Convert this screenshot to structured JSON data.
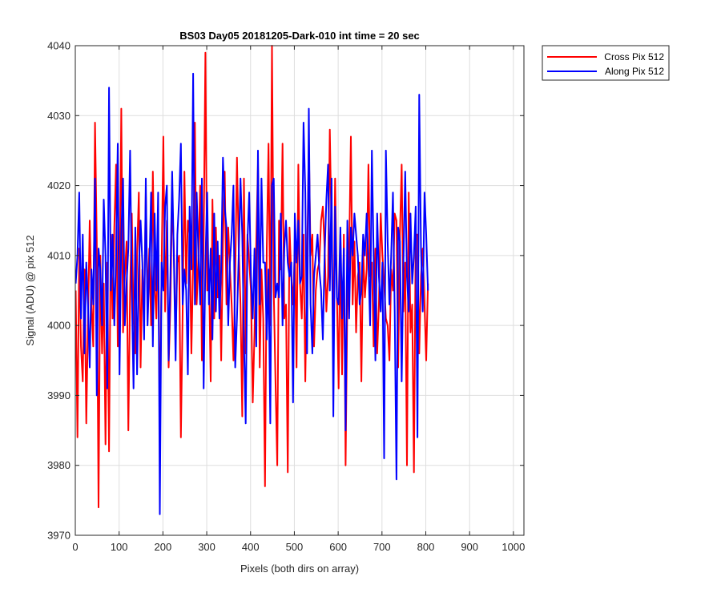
{
  "chart_data": {
    "type": "line",
    "title": "BS03 Day05 20181205-Dark-010 int time = 20 sec",
    "xlabel": "Pixels (both dirs on array)",
    "ylabel": "Signal (ADU) @ pix 512",
    "xlim": [
      0,
      1024
    ],
    "ylim": [
      3970,
      4040
    ],
    "xticks": [
      0,
      100,
      200,
      300,
      400,
      500,
      600,
      700,
      800,
      900,
      1000
    ],
    "yticks": [
      3970,
      3980,
      3990,
      4000,
      4010,
      4020,
      4030,
      4040
    ],
    "grid": true,
    "legend_placement": "outside-top-right",
    "x_start": 1,
    "x_step": 4,
    "series": [
      {
        "name": "Cross Pix 512",
        "color": "#ff0000",
        "values": [
          4005,
          3984,
          4011,
          3997,
          3992,
          4008,
          3986,
          4001,
          4015,
          4003,
          3997,
          4029,
          4012,
          3974,
          4010,
          3996,
          4006,
          3983,
          4009,
          3982,
          4013,
          4001,
          4014,
          4023,
          3997,
          4003,
          4031,
          3999,
          4007,
          4012,
          3985,
          4005,
          4016,
          4001,
          3996,
          4010,
          4019,
          3994,
          4008,
          4002,
          4019,
          4003,
          4011,
          4000,
          4022,
          4006,
          4001,
          4013,
          3985,
          4008,
          4027,
          4002,
          4015,
          3994,
          4003,
          4018,
          4011,
          3998,
          4009,
          4010,
          3984,
          4002,
          4022,
          4006,
          4015,
          4013,
          3996,
          4009,
          4029,
          4003,
          4010,
          4020,
          3995,
          4012,
          4039,
          4005,
          4008,
          3992,
          4018,
          4001,
          4014,
          4004,
          4010,
          3995,
          4012,
          4022,
          4003,
          4014,
          4008,
          4003,
          3995,
          4007,
          4024,
          4011,
          4003,
          3987,
          4021,
          3996,
          4013,
          4009,
          4005,
          3989,
          3999,
          4012,
          4023,
          3994,
          4008,
          4001,
          3977,
          4011,
          4026,
          4000,
          4040,
          4005,
          3992,
          3980,
          4015,
          4008,
          4026,
          4001,
          4003,
          3979,
          4014,
          4007,
          4003,
          4011,
          3994,
          4023,
          4006,
          4001,
          4013,
          3992,
          4009,
          4026,
          4010,
          4013,
          3997,
          4005,
          4008,
          4009,
          4015,
          4017,
          4011,
          4002,
          4007,
          4028,
          4013,
          3997,
          4021,
          4005,
          3991,
          4013,
          3993,
          4013,
          3980,
          4004,
          4010,
          4027,
          4003,
          4012,
          3999,
          4007,
          4009,
          3992,
          4011,
          4004,
          4008,
          4023,
          4007,
          4009,
          3997,
          4011,
          3996,
          4003,
          4016,
          4010,
          4006,
          4001,
          4000,
          3995,
          4008,
          4005,
          4016,
          4015,
          3994,
          4013,
          4023,
          4002,
          4009,
          3980,
          4019,
          3999,
          4003,
          3979,
          4013,
          4013,
          3996,
          4007,
          4011,
          4003,
          3995,
          4006
        ]
      },
      {
        "name": "Along Pix 512",
        "color": "#0000ff",
        "values": [
          4006,
          4010,
          4019,
          4001,
          4013,
          3996,
          4009,
          4003,
          3994,
          4008,
          4003,
          4021,
          3990,
          4011,
          4008,
          4000,
          4018,
          4010,
          3991,
          4034,
          4005,
          4013,
          4000,
          4010,
          4026,
          3993,
          4013,
          4021,
          4000,
          4006,
          4011,
          4025,
          4005,
          3991,
          4014,
          3993,
          4008,
          4015,
          4009,
          3998,
          4021,
          4000,
          4008,
          4019,
          3997,
          4016,
          4005,
          4019,
          3973,
          4009,
          4005,
          4017,
          4020,
          3995,
          4007,
          4022,
          4010,
          3995,
          4013,
          4018,
          4026,
          4003,
          4008,
          4005,
          3993,
          4017,
          4008,
          4036,
          4003,
          4019,
          4010,
          4003,
          4021,
          3991,
          4009,
          4019,
          4003,
          4011,
          3998,
          4016,
          4002,
          4012,
          4001,
          4008,
          4024,
          4017,
          4014,
          4000,
          4009,
          4013,
          4020,
          3994,
          4001,
          4010,
          4021,
          4013,
          3998,
          3986,
          4012,
          4019,
          4007,
          4001,
          4011,
          3997,
          4025,
          4003,
          4021,
          4009,
          4009,
          3998,
          4008,
          3986,
          4020,
          4021,
          4004,
          4006,
          4004,
          4016,
          4000,
          4011,
          4015,
          4009,
          4007,
          4009,
          3989,
          4016,
          4009,
          4015,
          4006,
          4007,
          4029,
          4019,
          3996,
          4031,
          4003,
          3996,
          4007,
          4010,
          4013,
          4008,
          4005,
          3998,
          4010,
          4018,
          4023,
          4005,
          4021,
          3987,
          4017,
          4004,
          4003,
          4014,
          4001,
          4011,
          3985,
          4015,
          4001,
          4014,
          4010,
          4016,
          4013,
          4010,
          4003,
          4005,
          4013,
          4010,
          4016,
          4009,
          4000,
          4025,
          4010,
          3995,
          4016,
          4007,
          4002,
          4009,
          3981,
          4025,
          4012,
          4003,
          4010,
          4019,
          4002,
          3978,
          4014,
          4012,
          3992,
          4009,
          4022,
          4007,
          4002,
          4016,
          4006,
          4010,
          4017,
          3984,
          4033,
          4011,
          4002,
          4019,
          4013,
          4005
        ]
      }
    ]
  }
}
